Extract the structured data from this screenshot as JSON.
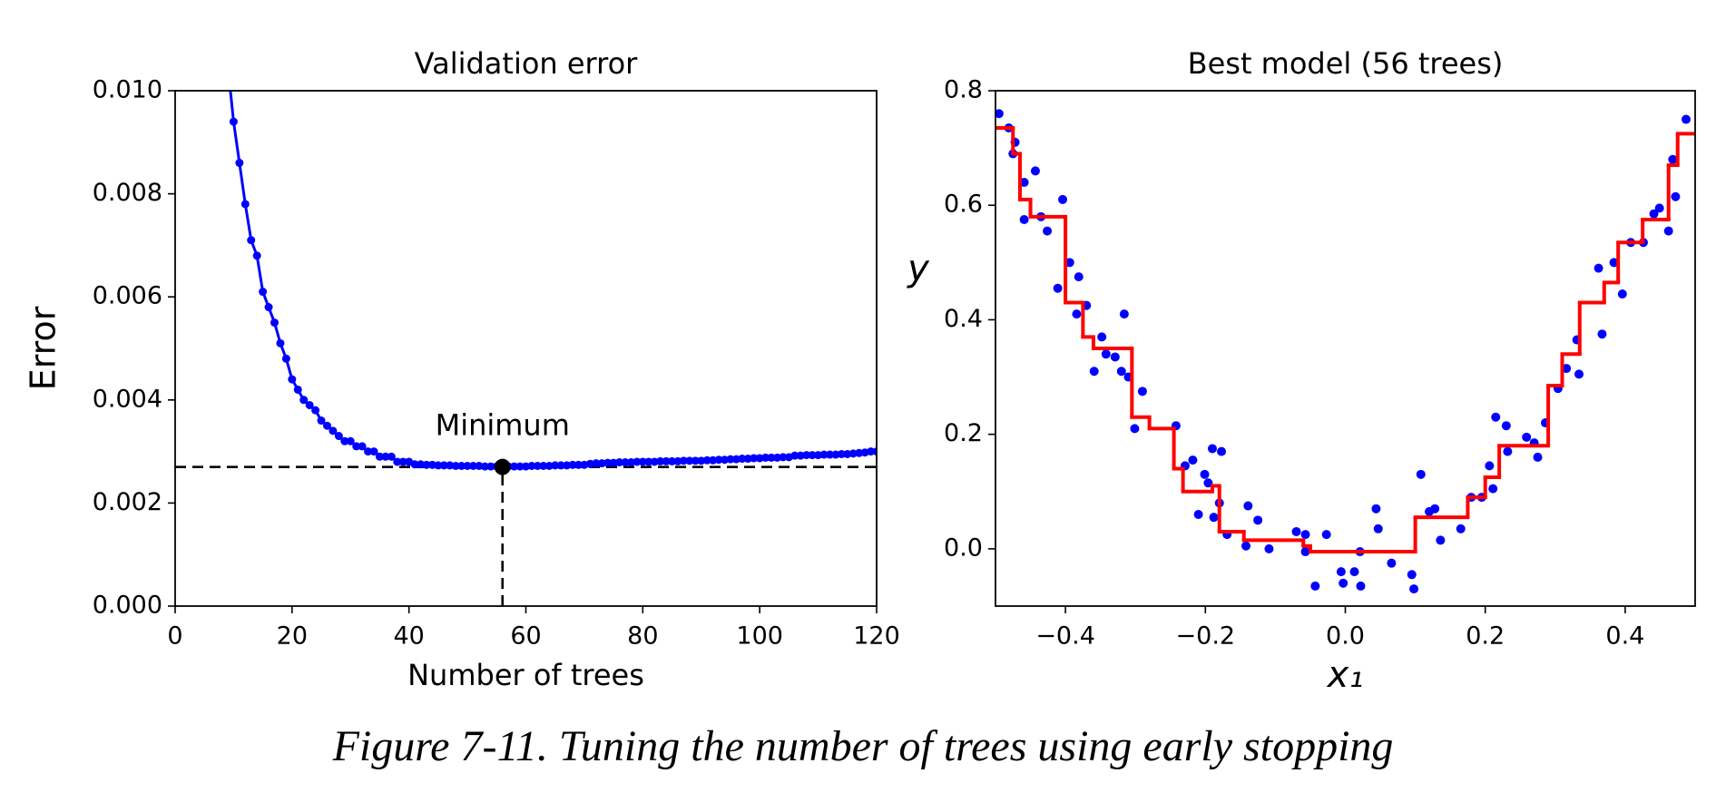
{
  "chart_data": [
    {
      "type": "line",
      "title": "Validation error",
      "x_label": "Number of trees",
      "y_label": "Error",
      "annotation": "Minimum",
      "xlim": [
        0,
        120
      ],
      "ylim": [
        0,
        0.01
      ],
      "xticks": [
        0,
        20,
        40,
        60,
        80,
        100,
        120
      ],
      "yticks": [
        {
          "value": 0,
          "label": "0.000"
        },
        {
          "value": 0.002,
          "label": "0.002"
        },
        {
          "value": 0.004,
          "label": "0.004"
        },
        {
          "value": 0.006,
          "label": "0.006"
        },
        {
          "value": 0.008,
          "label": "0.008"
        },
        {
          "value": 0.01,
          "label": "0.010"
        }
      ],
      "series": [
        {
          "color": "#0000ff",
          "x": [
            9,
            10,
            11,
            12,
            13,
            14,
            15,
            16,
            17,
            18,
            19,
            20,
            21,
            22,
            23,
            24,
            25,
            26,
            27,
            28,
            29,
            30,
            31,
            32,
            33,
            34,
            35,
            36,
            37,
            38,
            39,
            40,
            41,
            42,
            43,
            44,
            45,
            46,
            47,
            48,
            49,
            50,
            51,
            52,
            53,
            54,
            55,
            56,
            57,
            58,
            59,
            60,
            61,
            62,
            63,
            64,
            65,
            66,
            67,
            68,
            69,
            70,
            71,
            72,
            73,
            74,
            75,
            76,
            77,
            78,
            79,
            80,
            81,
            82,
            83,
            84,
            85,
            86,
            87,
            88,
            89,
            90,
            91,
            92,
            93,
            94,
            95,
            96,
            97,
            98,
            99,
            100,
            101,
            102,
            103,
            104,
            105,
            106,
            107,
            108,
            109,
            110,
            111,
            112,
            113,
            114,
            115,
            116,
            117,
            118,
            119,
            120
          ],
          "values": [
            0.0105,
            0.0094,
            0.0086,
            0.0078,
            0.0071,
            0.0068,
            0.0061,
            0.0058,
            0.0055,
            0.0051,
            0.0048,
            0.0044,
            0.0042,
            0.004,
            0.0039,
            0.0038,
            0.0036,
            0.0035,
            0.0034,
            0.0033,
            0.0032,
            0.0032,
            0.0031,
            0.0031,
            0.003,
            0.003,
            0.0029,
            0.0029,
            0.0029,
            0.0028,
            0.0028,
            0.0028,
            0.00275,
            0.00275,
            0.00274,
            0.00274,
            0.00273,
            0.00273,
            0.00273,
            0.00272,
            0.00272,
            0.00272,
            0.00272,
            0.00272,
            0.00271,
            0.00271,
            0.00271,
            0.0027,
            0.00271,
            0.00271,
            0.00271,
            0.00271,
            0.00272,
            0.00272,
            0.00272,
            0.00272,
            0.00273,
            0.00273,
            0.00273,
            0.00274,
            0.00274,
            0.00274,
            0.00276,
            0.00277,
            0.00277,
            0.00278,
            0.00278,
            0.00279,
            0.00279,
            0.00279,
            0.0028,
            0.0028,
            0.0028,
            0.0028,
            0.00281,
            0.00281,
            0.00281,
            0.00281,
            0.00282,
            0.00282,
            0.00282,
            0.00282,
            0.00283,
            0.00283,
            0.00284,
            0.00284,
            0.00285,
            0.00285,
            0.00286,
            0.00286,
            0.00287,
            0.00287,
            0.00288,
            0.00288,
            0.00288,
            0.00289,
            0.00289,
            0.00292,
            0.00292,
            0.00293,
            0.00293,
            0.00293,
            0.00294,
            0.00294,
            0.00294,
            0.00295,
            0.00295,
            0.00296,
            0.00297,
            0.00298,
            0.003,
            0.003
          ]
        }
      ],
      "minimum": {
        "x": 56,
        "y": 0.0027,
        "color": "#000000"
      }
    },
    {
      "type": "scatter",
      "title": "Best model (56 trees)",
      "x_label": "x₁",
      "y_label": "y",
      "xlim": [
        -0.5,
        0.5
      ],
      "ylim": [
        -0.1,
        0.8
      ],
      "xticks": [
        {
          "value": -0.4,
          "label": "−0.4"
        },
        {
          "value": -0.2,
          "label": "−0.2"
        },
        {
          "value": 0,
          "label": "0.0"
        },
        0.2,
        0.4
      ],
      "yticks": [
        {
          "value": 0,
          "label": "0.0"
        },
        0.2,
        0.4,
        0.6,
        0.8
      ],
      "series": [
        {
          "type": "scatter",
          "color": "#0000ff",
          "x": [
            -0.495,
            -0.481,
            -0.475,
            -0.472,
            -0.459,
            -0.459,
            -0.443,
            -0.435,
            -0.426,
            -0.404,
            -0.411,
            -0.394,
            -0.381,
            -0.384,
            -0.37,
            -0.359,
            -0.348,
            -0.342,
            -0.329,
            -0.316,
            -0.32,
            -0.31,
            -0.301,
            -0.29,
            -0.242,
            -0.229,
            -0.218,
            -0.21,
            -0.201,
            -0.196,
            -0.19,
            -0.177,
            -0.188,
            -0.18,
            -0.169,
            -0.142,
            -0.139,
            -0.125,
            -0.109,
            -0.07,
            -0.057,
            -0.057,
            -0.043,
            -0.027,
            -0.006,
            -0.003,
            0.013,
            0.021,
            0.022,
            0.044,
            0.047,
            0.066,
            0.095,
            0.098,
            0.108,
            0.12,
            0.128,
            0.136,
            0.165,
            0.18,
            0.195,
            0.206,
            0.211,
            0.215,
            0.23,
            0.232,
            0.259,
            0.27,
            0.275,
            0.286,
            0.304,
            0.316,
            0.331,
            0.334,
            0.362,
            0.367,
            0.384,
            0.396,
            0.408,
            0.426,
            0.441,
            0.449,
            0.462,
            0.468,
            0.472,
            0.487
          ],
          "values": [
            0.76,
            0.735,
            0.69,
            0.71,
            0.64,
            0.575,
            0.66,
            0.58,
            0.555,
            0.61,
            0.455,
            0.5,
            0.475,
            0.41,
            0.425,
            0.31,
            0.37,
            0.34,
            0.335,
            0.41,
            0.31,
            0.3,
            0.21,
            0.275,
            0.215,
            0.145,
            0.155,
            0.06,
            0.13,
            0.115,
            0.175,
            0.17,
            0.055,
            0.08,
            0.025,
            0.005,
            0.075,
            0.05,
            0,
            0.03,
            0.025,
            -0.005,
            -0.065,
            0.025,
            -0.04,
            -0.06,
            -0.04,
            -0.005,
            -0.065,
            0.07,
            0.035,
            -0.025,
            -0.045,
            -0.07,
            0.13,
            0.065,
            0.07,
            0.015,
            0.035,
            0.09,
            0.09,
            0.145,
            0.105,
            0.23,
            0.215,
            0.17,
            0.195,
            0.185,
            0.16,
            0.22,
            0.28,
            0.315,
            0.365,
            0.305,
            0.49,
            0.375,
            0.5,
            0.445,
            0.535,
            0.535,
            0.585,
            0.595,
            0.555,
            0.68,
            0.615,
            0.75
          ]
        },
        {
          "type": "step",
          "color": "#ff0000",
          "x": [
            -0.5,
            -0.475,
            -0.465,
            -0.45,
            -0.4,
            -0.375,
            -0.36,
            -0.305,
            -0.28,
            -0.245,
            -0.232,
            -0.19,
            -0.18,
            -0.145,
            -0.06,
            -0.05,
            0.1,
            0.175,
            0.2,
            0.22,
            0.29,
            0.31,
            0.335,
            0.37,
            0.39,
            0.425,
            0.462,
            0.475
          ],
          "values": [
            0.735,
            0.69,
            0.61,
            0.58,
            0.43,
            0.37,
            0.35,
            0.23,
            0.21,
            0.14,
            0.1,
            0.11,
            0.03,
            0.015,
            0.005,
            -0.005,
            0.055,
            0.09,
            0.125,
            0.18,
            0.285,
            0.34,
            0.43,
            0.465,
            0.535,
            0.575,
            0.67,
            0.725
          ]
        }
      ]
    }
  ],
  "caption": "Figure 7-11. Tuning the number of trees using early stopping"
}
